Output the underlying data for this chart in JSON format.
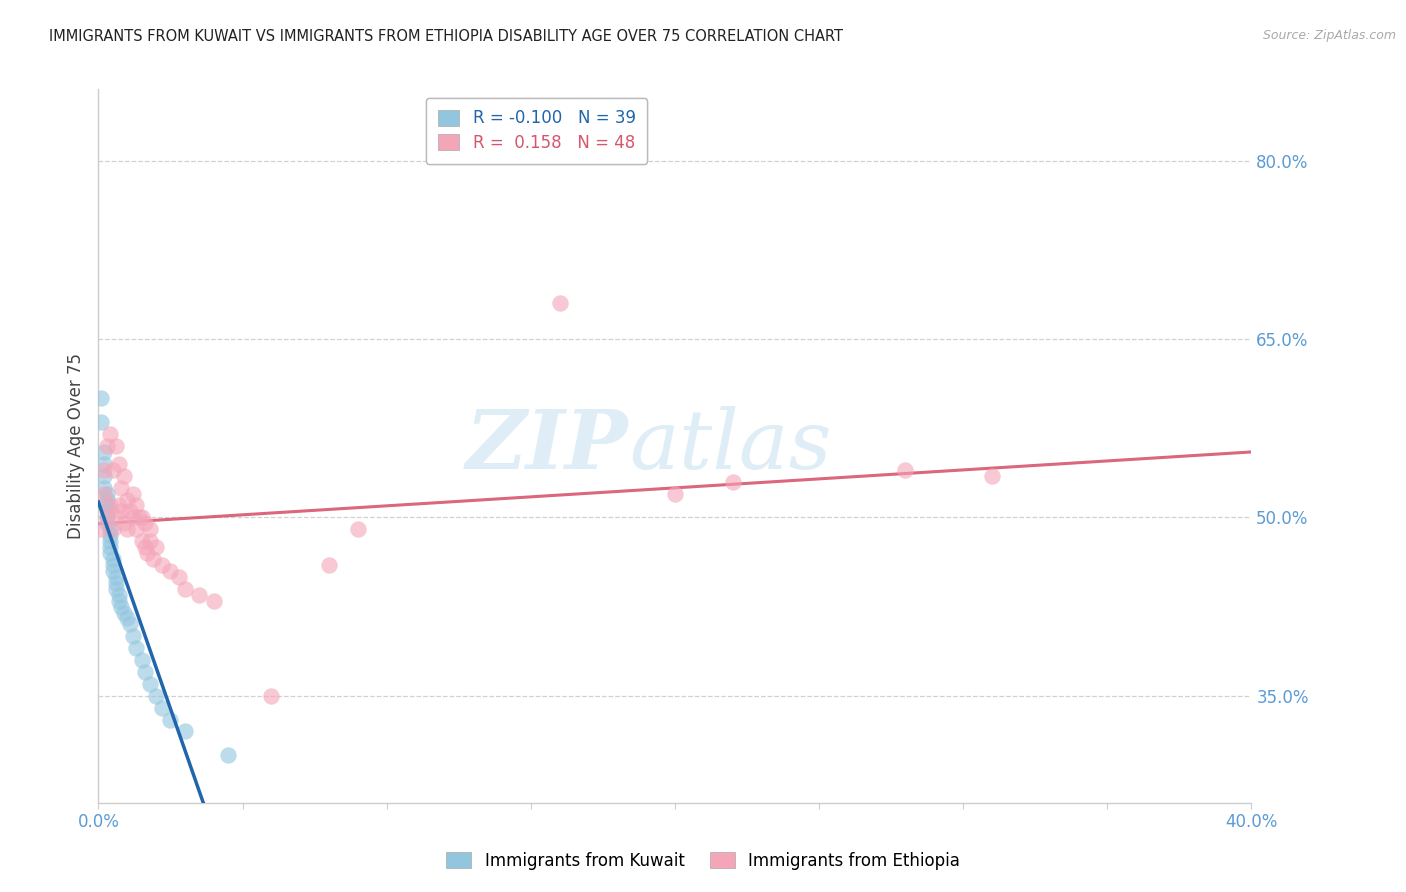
{
  "title": "IMMIGRANTS FROM KUWAIT VS IMMIGRANTS FROM ETHIOPIA DISABILITY AGE OVER 75 CORRELATION CHART",
  "source": "Source: ZipAtlas.com",
  "ylabel": "Disability Age Over 75",
  "watermark_line1": "ZIP",
  "watermark_line2": "atlas",
  "legend_kuwait": "Immigrants from Kuwait",
  "legend_ethiopia": "Immigrants from Ethiopia",
  "kuwait_R": "-0.100",
  "kuwait_N": "39",
  "ethiopia_R": "0.158",
  "ethiopia_N": "48",
  "kuwait_color": "#92c5de",
  "ethiopia_color": "#f4a5b8",
  "kuwait_line_color": "#2166ac",
  "ethiopia_line_color": "#d6566d",
  "axis_tick_color": "#5b9bd5",
  "grid_color": "#cccccc",
  "title_color": "#222222",
  "source_color": "#aaaaaa",
  "watermark_color": "#b8d8ee",
  "xlim": [
    0.0,
    0.4
  ],
  "ylim": [
    0.26,
    0.86
  ],
  "yticks": [
    0.35,
    0.5,
    0.65,
    0.8
  ],
  "ytick_labels": [
    "35.0%",
    "50.0%",
    "65.0%",
    "80.0%"
  ],
  "xtick_vals": [
    0.0,
    0.05,
    0.1,
    0.15,
    0.2,
    0.25,
    0.3,
    0.35,
    0.4
  ],
  "xtick_labels": [
    "0.0%",
    "",
    "",
    "",
    "",
    "",
    "",
    "",
    "40.0%"
  ],
  "kuwait_x": [
    0.001,
    0.001,
    0.002,
    0.002,
    0.002,
    0.002,
    0.003,
    0.003,
    0.003,
    0.003,
    0.003,
    0.003,
    0.004,
    0.004,
    0.004,
    0.004,
    0.004,
    0.005,
    0.005,
    0.005,
    0.006,
    0.006,
    0.006,
    0.007,
    0.007,
    0.008,
    0.009,
    0.01,
    0.011,
    0.012,
    0.013,
    0.015,
    0.016,
    0.018,
    0.02,
    0.022,
    0.025,
    0.03,
    0.045
  ],
  "kuwait_y": [
    0.6,
    0.58,
    0.555,
    0.545,
    0.535,
    0.525,
    0.52,
    0.515,
    0.51,
    0.505,
    0.5,
    0.495,
    0.49,
    0.485,
    0.48,
    0.475,
    0.47,
    0.465,
    0.46,
    0.455,
    0.45,
    0.445,
    0.44,
    0.435,
    0.43,
    0.425,
    0.42,
    0.415,
    0.41,
    0.4,
    0.39,
    0.38,
    0.37,
    0.36,
    0.35,
    0.34,
    0.33,
    0.32,
    0.3
  ],
  "ethiopia_x": [
    0.001,
    0.002,
    0.002,
    0.003,
    0.003,
    0.004,
    0.004,
    0.005,
    0.005,
    0.006,
    0.006,
    0.007,
    0.007,
    0.008,
    0.008,
    0.009,
    0.009,
    0.01,
    0.01,
    0.011,
    0.012,
    0.012,
    0.013,
    0.013,
    0.014,
    0.015,
    0.015,
    0.016,
    0.016,
    0.017,
    0.018,
    0.018,
    0.019,
    0.02,
    0.022,
    0.025,
    0.028,
    0.03,
    0.035,
    0.04,
    0.06,
    0.08,
    0.09,
    0.16,
    0.2,
    0.22,
    0.28,
    0.31
  ],
  "ethiopia_y": [
    0.49,
    0.52,
    0.54,
    0.5,
    0.56,
    0.51,
    0.57,
    0.49,
    0.54,
    0.5,
    0.56,
    0.51,
    0.545,
    0.505,
    0.525,
    0.495,
    0.535,
    0.49,
    0.515,
    0.505,
    0.5,
    0.52,
    0.49,
    0.51,
    0.5,
    0.48,
    0.5,
    0.475,
    0.495,
    0.47,
    0.48,
    0.49,
    0.465,
    0.475,
    0.46,
    0.455,
    0.45,
    0.44,
    0.435,
    0.43,
    0.35,
    0.46,
    0.49,
    0.68,
    0.52,
    0.53,
    0.54,
    0.535
  ]
}
